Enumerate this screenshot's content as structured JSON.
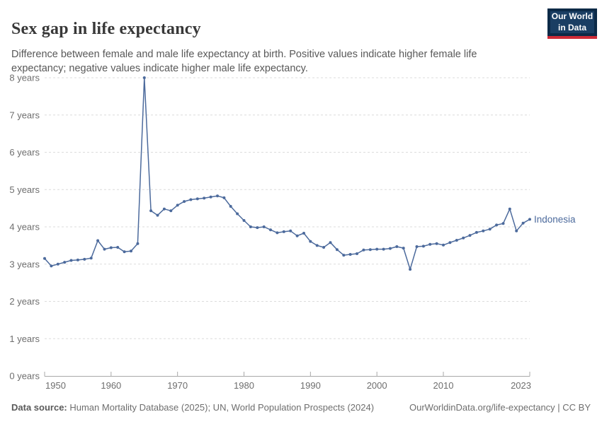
{
  "header": {
    "title": "Sex gap in life expectancy",
    "subtitle": "Difference between female and male life expectancy at birth. Positive values indicate higher female life expectancy; negative values indicate higher male life expectancy."
  },
  "logo": {
    "line1": "Our World",
    "line2": "in Data",
    "bg_color": "#0C2A47",
    "inner_color": "#1A3E63",
    "stripe_color": "#CE2B37"
  },
  "chart_data": {
    "type": "line",
    "title": "Sex gap in life expectancy",
    "unit": "years",
    "xlabel": "",
    "ylabel": "",
    "ylim": [
      0,
      8
    ],
    "yticks": [
      0,
      1,
      2,
      3,
      4,
      5,
      6,
      7,
      8
    ],
    "ytick_label_suffix": " years",
    "xticks": [
      1950,
      1960,
      1970,
      1980,
      1990,
      2000,
      2010,
      2023
    ],
    "xlim": [
      1950,
      2023
    ],
    "grid": "horizontal-dashed",
    "legend_position": "end-of-line",
    "line_color": "#4C6A9C",
    "axis_color": "#a8a8a8",
    "grid_color": "#dcdcdc",
    "tick_label_color": "#6e6e6e",
    "series": [
      {
        "name": "Indonesia",
        "color": "#4C6A9C",
        "x": [
          1950,
          1951,
          1952,
          1953,
          1954,
          1955,
          1956,
          1957,
          1958,
          1959,
          1960,
          1961,
          1962,
          1963,
          1964,
          1965,
          1966,
          1967,
          1968,
          1969,
          1970,
          1971,
          1972,
          1973,
          1974,
          1975,
          1976,
          1977,
          1978,
          1979,
          1980,
          1981,
          1982,
          1983,
          1984,
          1985,
          1986,
          1987,
          1988,
          1989,
          1990,
          1991,
          1992,
          1993,
          1994,
          1995,
          1996,
          1997,
          1998,
          1999,
          2000,
          2001,
          2002,
          2003,
          2004,
          2005,
          2006,
          2007,
          2008,
          2009,
          2010,
          2011,
          2012,
          2013,
          2014,
          2015,
          2016,
          2017,
          2018,
          2019,
          2020,
          2021,
          2022,
          2023
        ],
        "values": [
          3.15,
          2.95,
          3.0,
          3.05,
          3.1,
          3.11,
          3.13,
          3.16,
          3.63,
          3.4,
          3.44,
          3.45,
          3.33,
          3.35,
          3.55,
          8.0,
          4.43,
          4.31,
          4.48,
          4.43,
          4.58,
          4.68,
          4.73,
          4.75,
          4.77,
          4.8,
          4.83,
          4.78,
          4.55,
          4.35,
          4.17,
          4.0,
          3.98,
          4.0,
          3.92,
          3.84,
          3.87,
          3.89,
          3.76,
          3.83,
          3.61,
          3.5,
          3.45,
          3.58,
          3.39,
          3.24,
          3.26,
          3.28,
          3.38,
          3.39,
          3.4,
          3.4,
          3.42,
          3.47,
          3.43,
          2.86,
          3.47,
          3.48,
          3.53,
          3.55,
          3.51,
          3.58,
          3.64,
          3.7,
          3.77,
          3.85,
          3.89,
          3.94,
          4.05,
          4.09,
          4.48,
          3.89,
          4.1,
          4.2
        ]
      }
    ]
  },
  "footer": {
    "datasource_label": "Data source:",
    "datasource_text": " Human Mortality Database (2025); UN, World Population Prospects (2024)",
    "credit": "OurWorldinData.org/life-expectancy | CC BY"
  }
}
